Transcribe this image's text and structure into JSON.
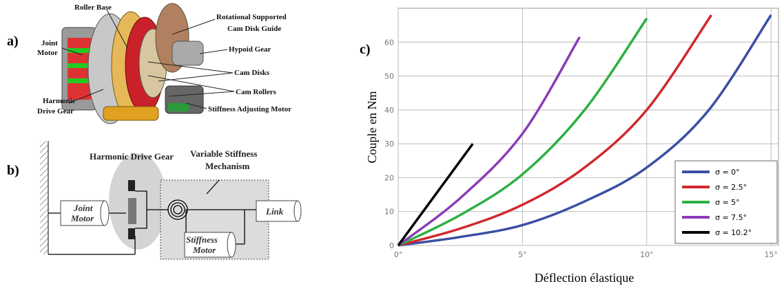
{
  "panel_a": {
    "label": "a)",
    "callouts": [
      {
        "lines": [
          "Roller Base"
        ]
      },
      {
        "lines": [
          "Rotational Supported",
          "Cam Disk Guide"
        ]
      },
      {
        "lines": [
          "Hypoid Gear"
        ]
      },
      {
        "lines": [
          "Joint",
          "Motor"
        ]
      },
      {
        "lines": [
          "Cam Disks"
        ]
      },
      {
        "lines": [
          "Cam Rollers"
        ]
      },
      {
        "lines": [
          "Harmonic",
          "Drive Gear"
        ]
      },
      {
        "lines": [
          "Stiffness Adjusting Motor"
        ]
      }
    ]
  },
  "panel_b": {
    "label": "b)",
    "harmonic": "Harmonic Drive Gear",
    "vsm": [
      "Variable Stiffness",
      "Mechanism"
    ],
    "joint_motor": [
      "Joint",
      "Motor"
    ],
    "stiffness_motor": [
      "Stiffness",
      "Motor"
    ],
    "link": "Link"
  },
  "chart_data": {
    "type": "line",
    "panel_label": "c)",
    "x_label": "Déflection élastique",
    "y_label": "Couple en Nm",
    "xlim": [
      0,
      15.3
    ],
    "ylim": [
      0,
      70
    ],
    "xticks": [
      {
        "value": 0,
        "label": "0°"
      },
      {
        "value": 5,
        "label": "5°"
      },
      {
        "value": 10,
        "label": "10°"
      },
      {
        "value": 15,
        "label": "15°"
      }
    ],
    "yticks": [
      0,
      10,
      20,
      30,
      40,
      50,
      60
    ],
    "grid": true,
    "legend": "lower right",
    "series": [
      {
        "name": "σ = 0°",
        "color": "#3b4fa3",
        "x": [
          0,
          2.5,
          5,
          7.5,
          10,
          12.5,
          15
        ],
        "values": [
          0,
          2.5,
          6,
          13,
          23,
          40,
          68
        ]
      },
      {
        "name": "σ = 2.5°",
        "color": "#d0282c",
        "x": [
          0,
          2.5,
          5,
          7.5,
          10,
          12.6
        ],
        "values": [
          0,
          5,
          12,
          23,
          40,
          68
        ]
      },
      {
        "name": "σ = 5°",
        "color": "#2cb043",
        "x": [
          0,
          2.5,
          5,
          7.5,
          10
        ],
        "values": [
          0,
          9,
          21,
          40,
          67
        ]
      },
      {
        "name": "σ = 7.5°",
        "color": "#8b3cb9",
        "x": [
          0,
          2.5,
          5,
          7.3
        ],
        "values": [
          0,
          14,
          33,
          61.5
        ]
      },
      {
        "name": "σ = 10.2°",
        "color": "#000000",
        "x": [
          0,
          1,
          2,
          3
        ],
        "values": [
          0,
          10,
          20,
          30
        ]
      }
    ]
  }
}
